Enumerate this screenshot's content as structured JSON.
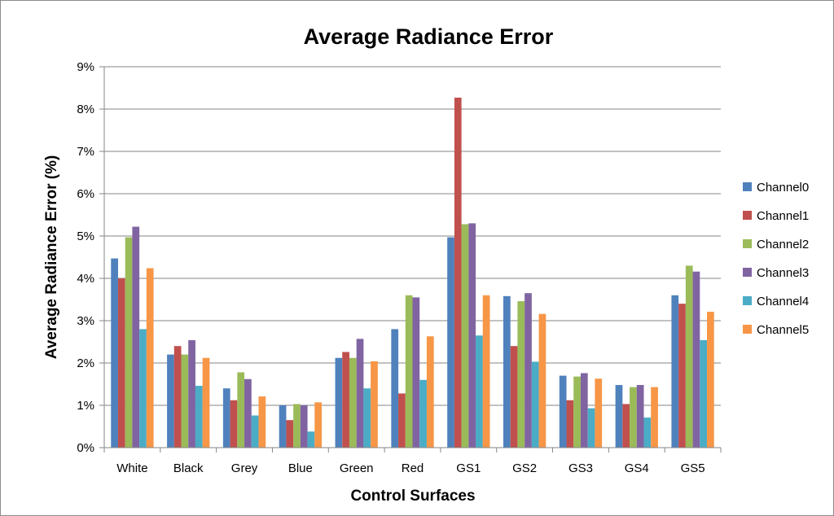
{
  "chart_data": {
    "type": "bar",
    "title": "Average Radiance Error",
    "xlabel": "Control Surfaces",
    "ylabel": "Average Radiance Error (%)",
    "ylim": [
      0,
      9
    ],
    "yticks": [
      "0%",
      "1%",
      "2%",
      "3%",
      "4%",
      "5%",
      "6%",
      "7%",
      "8%",
      "9%"
    ],
    "grid": true,
    "legend_position": "right",
    "categories": [
      "White",
      "Black",
      "Grey",
      "Blue",
      "Green",
      "Red",
      "GS1",
      "GS2",
      "GS3",
      "GS4",
      "GS5"
    ],
    "series": [
      {
        "name": "Channel0",
        "color": "#4F81BD",
        "values": [
          4.47,
          2.2,
          1.4,
          1.0,
          2.12,
          2.8,
          4.97,
          3.58,
          1.7,
          1.48,
          3.6
        ]
      },
      {
        "name": "Channel1",
        "color": "#C0504D",
        "values": [
          4.0,
          2.4,
          1.12,
          0.65,
          2.26,
          1.28,
          8.27,
          2.4,
          1.12,
          1.03,
          3.4
        ]
      },
      {
        "name": "Channel2",
        "color": "#9BBB59",
        "values": [
          4.97,
          2.2,
          1.78,
          1.03,
          2.12,
          3.6,
          5.28,
          3.46,
          1.68,
          1.43,
          4.3
        ]
      },
      {
        "name": "Channel3",
        "color": "#8064A2",
        "values": [
          5.22,
          2.54,
          1.62,
          1.0,
          2.57,
          3.55,
          5.3,
          3.65,
          1.76,
          1.48,
          4.16
        ]
      },
      {
        "name": "Channel4",
        "color": "#4BACC6",
        "values": [
          2.8,
          1.46,
          0.76,
          0.38,
          1.4,
          1.6,
          2.65,
          2.03,
          0.93,
          0.71,
          2.54
        ]
      },
      {
        "name": "Channel5",
        "color": "#F79646",
        "values": [
          4.24,
          2.12,
          1.21,
          1.07,
          2.04,
          2.63,
          3.6,
          3.16,
          1.63,
          1.43,
          3.21
        ]
      }
    ]
  }
}
